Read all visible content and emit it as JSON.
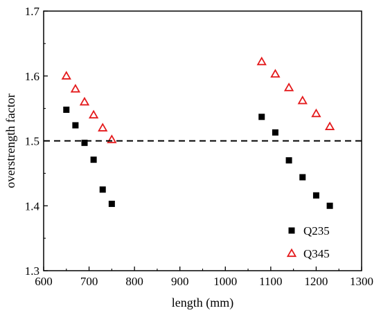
{
  "chart_data": {
    "type": "scatter",
    "title": "",
    "xlabel": "length (mm)",
    "ylabel": "overstrength factor",
    "xlim": [
      600,
      1300
    ],
    "ylim": [
      1.3,
      1.7
    ],
    "x_ticks": [
      600,
      700,
      800,
      900,
      1000,
      1100,
      1200,
      1300
    ],
    "y_ticks": [
      1.3,
      1.4,
      1.5,
      1.6,
      1.7
    ],
    "x_tick_labels": [
      "600",
      "700",
      "800",
      "900",
      "1000",
      "1100",
      "1200",
      "1300"
    ],
    "y_tick_labels": [
      "1.3",
      "1.4",
      "1.5",
      "1.6",
      "1.7"
    ],
    "grid": false,
    "legend_position": "bottom-right",
    "reference_line": {
      "y": 1.5,
      "style": "dashed",
      "color": "#000000"
    },
    "series": [
      {
        "name": "Q235",
        "marker": "square",
        "color": "#000000",
        "x": [
          650,
          670,
          690,
          710,
          730,
          750,
          1080,
          1110,
          1140,
          1170,
          1200,
          1230
        ],
        "y": [
          1.548,
          1.524,
          1.497,
          1.471,
          1.425,
          1.403,
          1.537,
          1.513,
          1.47,
          1.444,
          1.416,
          1.4
        ]
      },
      {
        "name": "Q345",
        "marker": "triangle-open",
        "color": "#e41a1c",
        "x": [
          650,
          670,
          690,
          710,
          730,
          750,
          1080,
          1110,
          1140,
          1170,
          1200,
          1230
        ],
        "y": [
          1.6,
          1.58,
          1.56,
          1.54,
          1.52,
          1.502,
          1.622,
          1.603,
          1.582,
          1.562,
          1.542,
          1.522
        ]
      }
    ]
  }
}
